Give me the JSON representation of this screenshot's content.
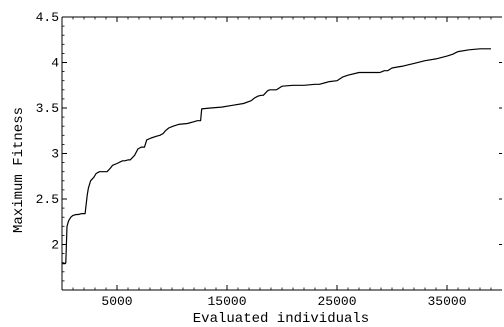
{
  "chart_data": {
    "type": "line",
    "xlabel": "Evaluated individuals",
    "ylabel": "Maximum Fitness",
    "xlim": [
      0,
      40000
    ],
    "ylim": [
      1.5,
      4.5
    ],
    "grid": false,
    "x_ticks": [
      5000,
      15000,
      25000,
      35000
    ],
    "x_tick_labels": [
      "5000",
      "15000",
      "25000",
      "35000"
    ],
    "y_ticks": [
      2,
      2.5,
      3,
      3.5,
      4,
      4.5
    ],
    "y_tick_labels": [
      "2",
      "2.5",
      "3",
      "3.5",
      "4",
      "4.5"
    ],
    "series": [
      {
        "x": [
          0,
          300,
          350,
          450,
          600,
          800,
          1000,
          1300,
          1500,
          1800,
          1900,
          2100,
          2300,
          2400,
          2600,
          2900,
          3100,
          3400,
          3700,
          4000,
          4100,
          4400,
          4600,
          5000,
          5500,
          5700,
          6000,
          6200,
          6600,
          6900,
          7200,
          7500,
          7700,
          8100,
          8600,
          8900,
          9200,
          9400,
          9700,
          10100,
          10600,
          11400,
          12000,
          12300,
          12600,
          12700,
          13500,
          14500,
          15500,
          16500,
          17200,
          17500,
          17800,
          18100,
          18300,
          18700,
          18900,
          19500,
          20000,
          21000,
          22000,
          23000,
          23400,
          24000,
          24300,
          25000,
          25500,
          26000,
          27000,
          28000,
          28900,
          29300,
          29600,
          30000,
          30500,
          31000,
          32000,
          33000,
          34000,
          35000,
          35500,
          36000,
          37000,
          38000,
          39000
        ],
        "y": [
          1.79,
          1.79,
          1.8,
          2.2,
          2.26,
          2.3,
          2.32,
          2.33,
          2.33,
          2.34,
          2.34,
          2.34,
          2.55,
          2.62,
          2.7,
          2.74,
          2.78,
          2.8,
          2.8,
          2.8,
          2.8,
          2.84,
          2.87,
          2.89,
          2.92,
          2.92,
          2.93,
          2.93,
          2.98,
          3.05,
          3.07,
          3.07,
          3.15,
          3.17,
          3.19,
          3.2,
          3.22,
          3.25,
          3.28,
          3.3,
          3.32,
          3.33,
          3.35,
          3.36,
          3.36,
          3.49,
          3.5,
          3.51,
          3.53,
          3.55,
          3.58,
          3.61,
          3.63,
          3.64,
          3.64,
          3.69,
          3.7,
          3.7,
          3.74,
          3.75,
          3.75,
          3.76,
          3.76,
          3.78,
          3.79,
          3.8,
          3.84,
          3.86,
          3.89,
          3.89,
          3.89,
          3.91,
          3.91,
          3.94,
          3.95,
          3.96,
          3.99,
          4.02,
          4.04,
          4.07,
          4.09,
          4.12,
          4.14,
          4.15,
          4.15
        ]
      }
    ]
  }
}
